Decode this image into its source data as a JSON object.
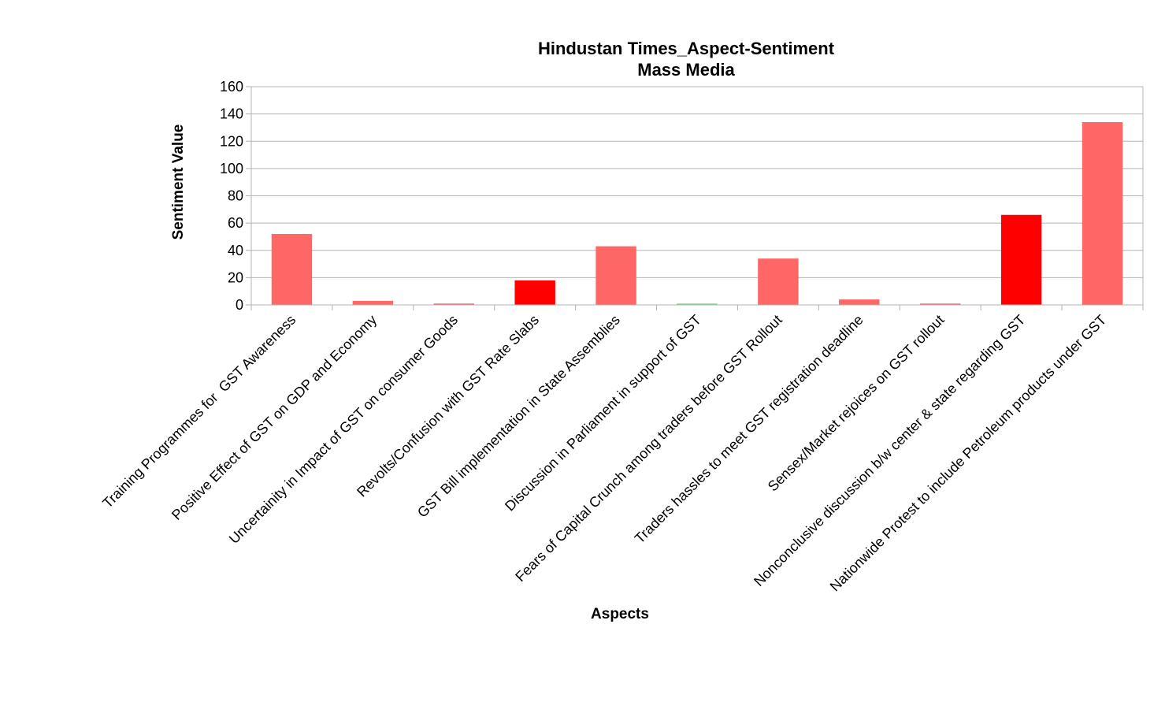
{
  "chart_data": {
    "type": "bar",
    "title": "Hindustan Times_Aspect-Sentiment",
    "subtitle": "Mass Media",
    "xlabel": "Aspects",
    "ylabel": "Sentiment Value",
    "ylim": [
      0,
      160
    ],
    "yticks": [
      0,
      20,
      40,
      60,
      80,
      100,
      120,
      140,
      160
    ],
    "grid": true,
    "legend": "none",
    "categories": [
      "Training Programmes for  GST Awareness",
      "Positive Effect of GST on GDP and Economy",
      "Uncertainity in Impact of GST on consumer Goods",
      "Revolts/Confusion with GST Rate Slabs",
      "GST Bill implementation in State Assemblies",
      "Discussion in Parliament in support of GST",
      "Fears of Capital Crunch among traders before GST Rollout",
      "Traders hassles to meet GST registration deadline",
      "Sensex/Market rejoices on GST rollout",
      "Nonconclusive discussion b/w center & state regarding GST",
      "Nationwide Protest to include Petroleum products under GST"
    ],
    "values": [
      52,
      3,
      1,
      18,
      43,
      1,
      34,
      4,
      1,
      66,
      134
    ],
    "colors": [
      "#ff6666",
      "#ff6666",
      "#ff6666",
      "#ff0000",
      "#ff6666",
      "#77dd77",
      "#ff6666",
      "#ff6666",
      "#ff6666",
      "#ff0000",
      "#ff6666"
    ],
    "gridColor": "#b3b3b3",
    "axisColor": "#b3b3b3"
  }
}
